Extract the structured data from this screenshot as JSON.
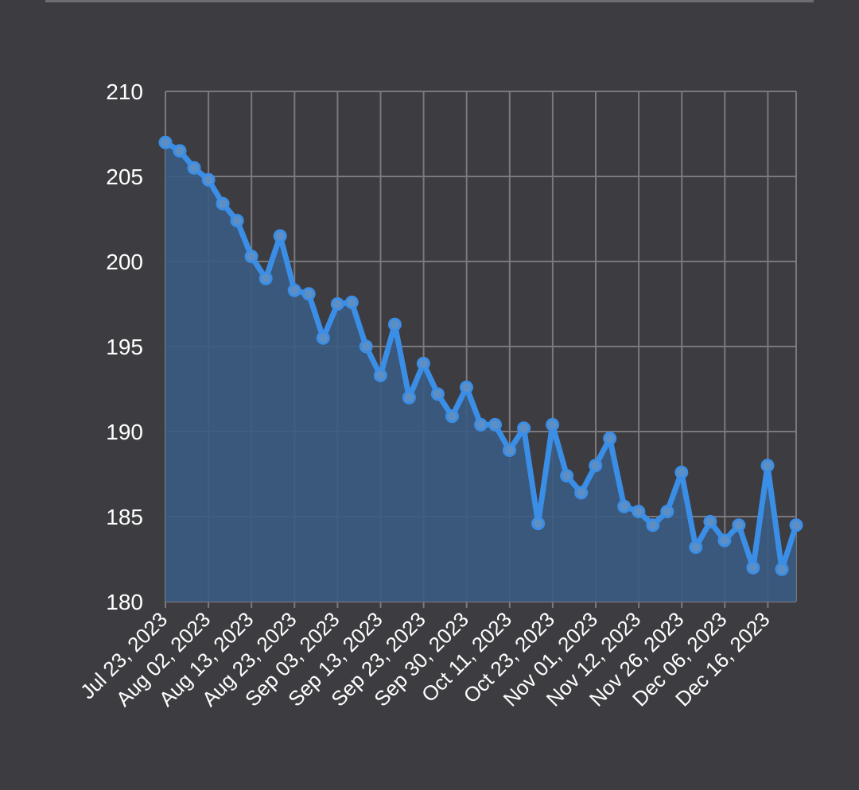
{
  "chart_data": {
    "type": "area",
    "title": "",
    "xlabel": "",
    "ylabel": "",
    "ylim": [
      180,
      210
    ],
    "yticks": [
      180,
      185,
      190,
      195,
      200,
      205,
      210
    ],
    "grid": true,
    "legend": "none",
    "x_tick_labels": [
      "Jul 23, 2023",
      "Aug 02, 2023",
      "Aug 13, 2023",
      "Aug 23, 2023",
      "Sep 03, 2023",
      "Sep 13, 2023",
      "Sep 23, 2023",
      "Sep 30, 2023",
      "Oct 11, 2023",
      "Oct 23, 2023",
      "Nov 01, 2023",
      "Nov 12, 2023",
      "Nov 26, 2023",
      "Dec 06, 2023",
      "Dec 16, 2023"
    ],
    "series": [
      {
        "values": [
          207.0,
          206.5,
          205.5,
          204.8,
          203.4,
          202.4,
          200.3,
          199.0,
          201.5,
          198.3,
          198.1,
          195.5,
          197.5,
          197.6,
          195.0,
          193.3,
          196.3,
          192.0,
          194.0,
          192.2,
          190.9,
          192.6,
          190.4,
          190.4,
          188.9,
          190.2,
          184.6,
          190.4,
          187.4,
          186.4,
          188.0,
          189.6,
          185.6,
          185.3,
          184.5,
          185.3,
          187.6,
          183.2,
          184.7,
          183.6,
          184.5,
          182.0,
          188.0,
          181.9,
          184.5
        ]
      }
    ],
    "colors": {
      "background": "#3d3c41",
      "grid": "#7a797e",
      "line": "#3b8ee6",
      "fill": "#3a5b82",
      "text": "#ffffff"
    }
  }
}
